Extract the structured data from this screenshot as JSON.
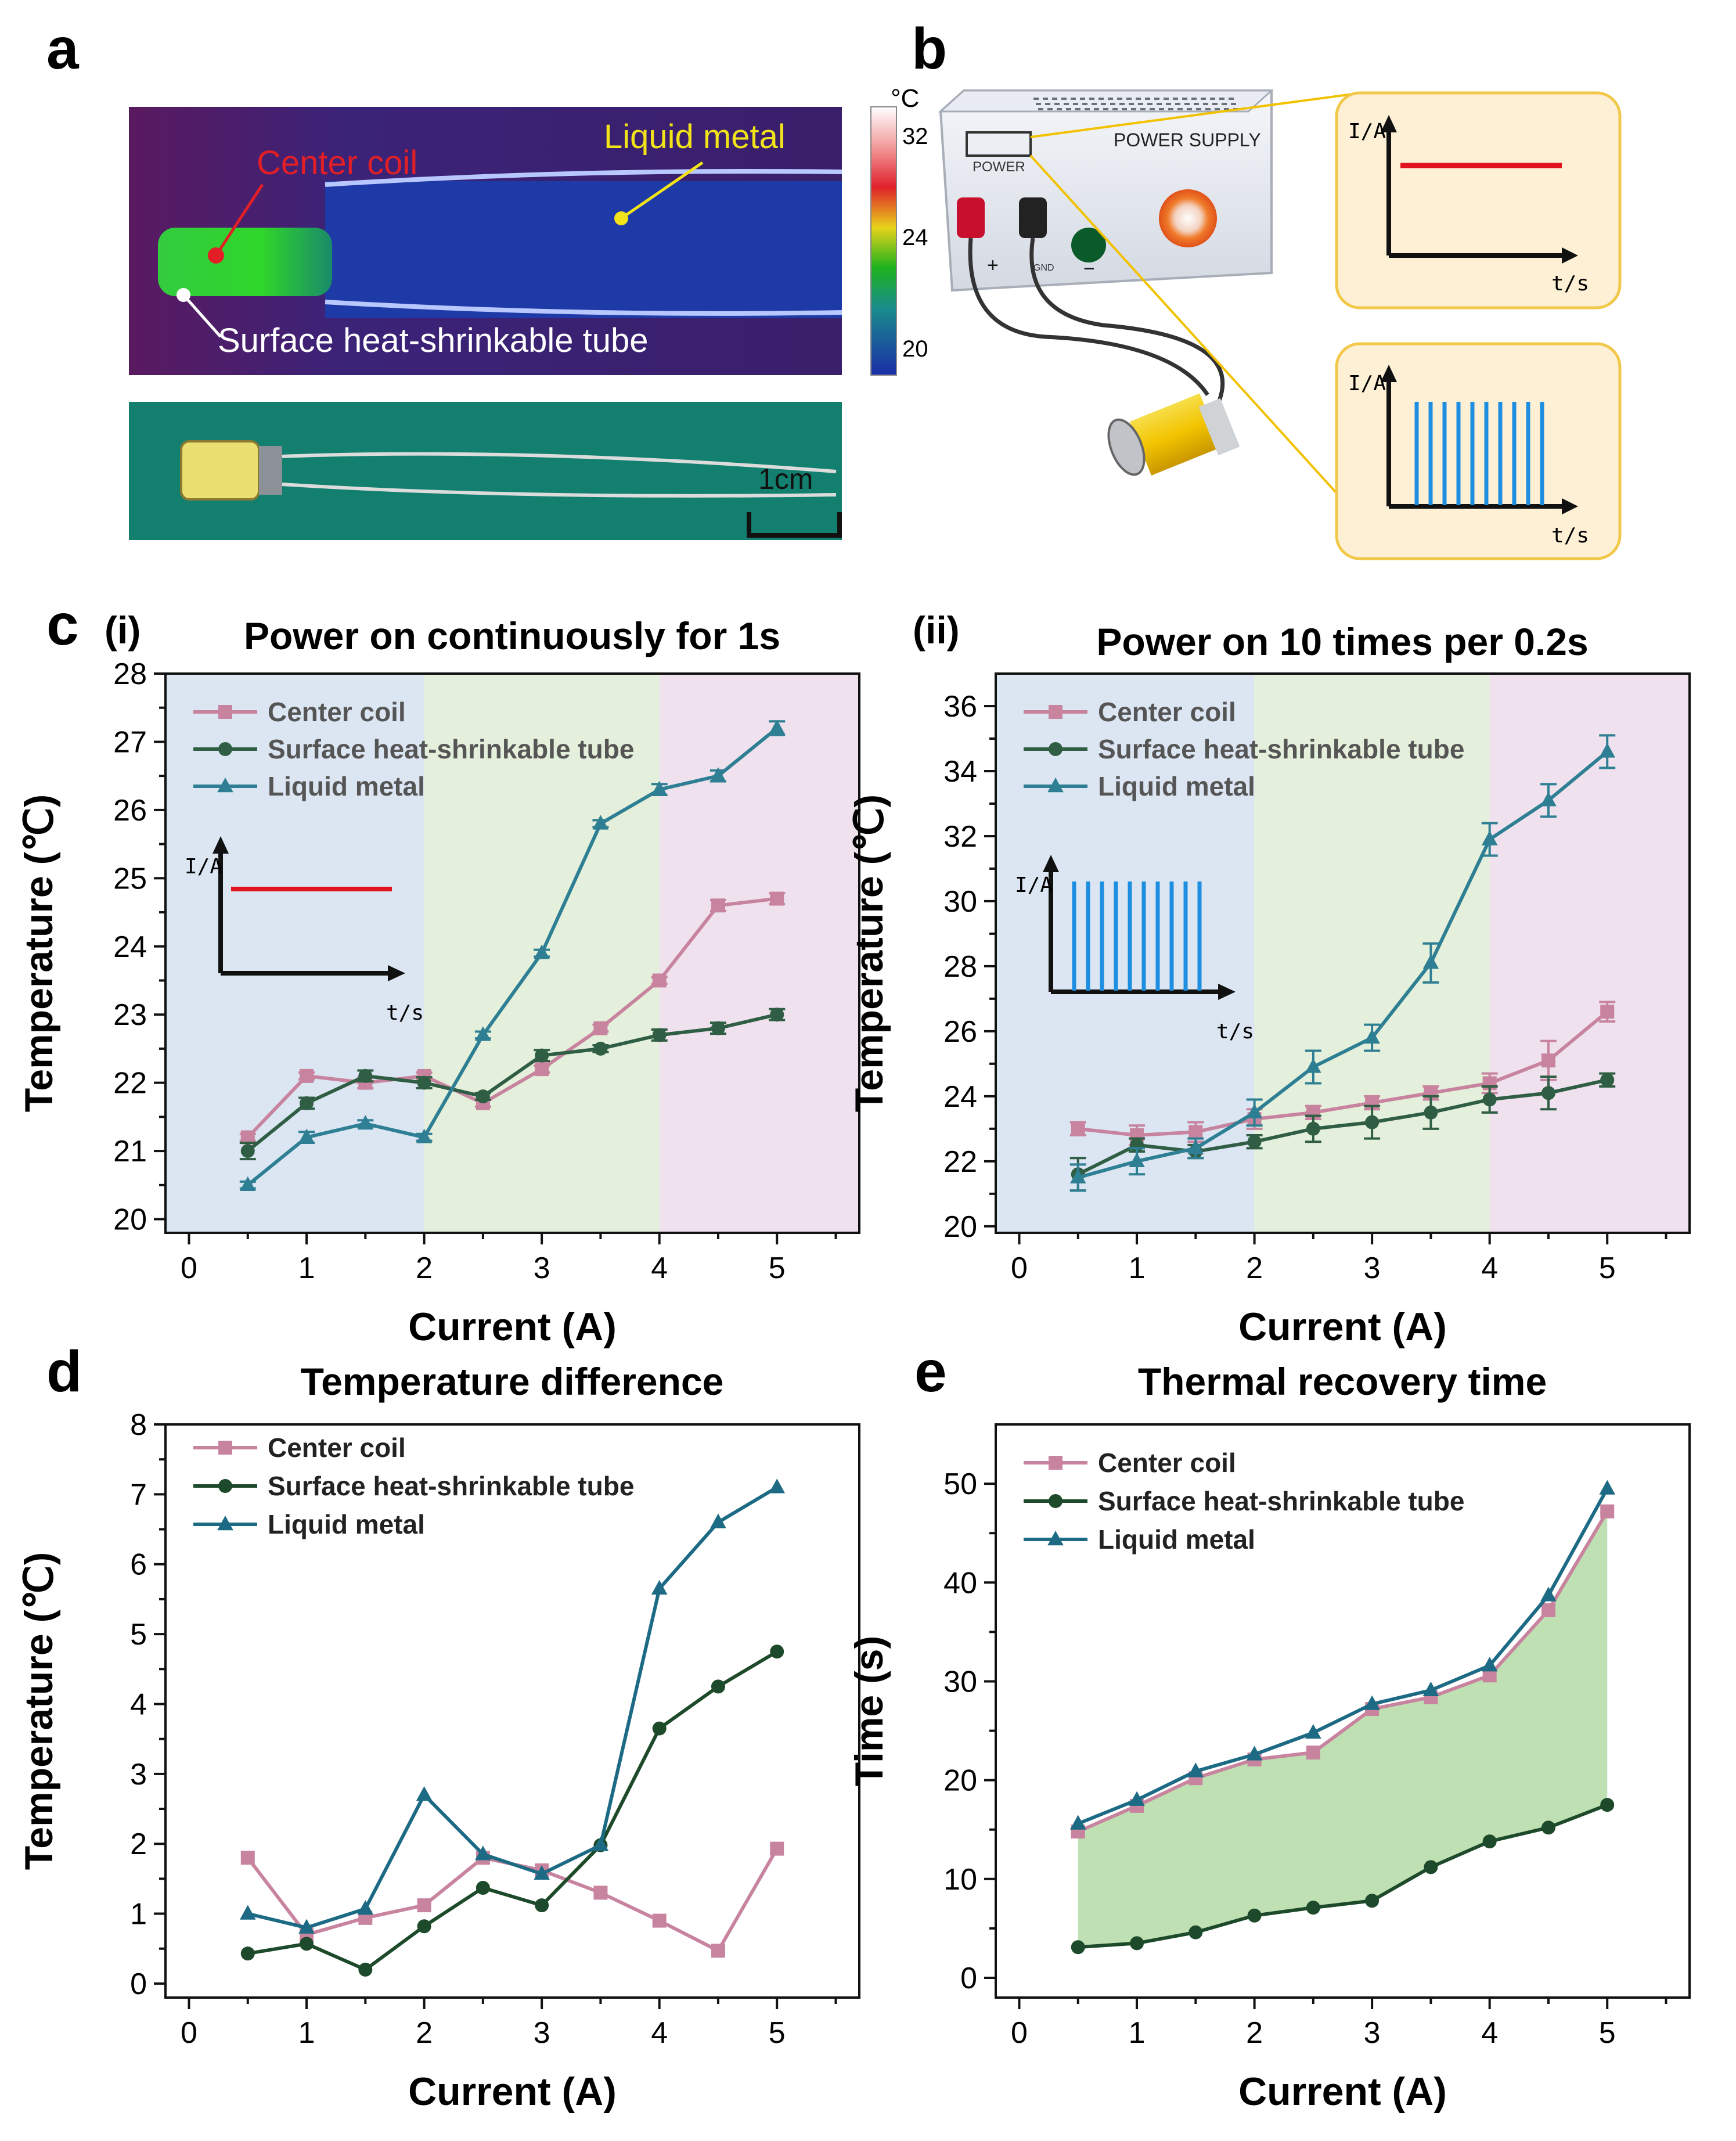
{
  "panels": {
    "a": {
      "label": "a",
      "thermal_labels": {
        "center_coil": "Center coil",
        "liquid_metal": "Liquid metal",
        "tube": "Surface heat-shrinkable tube"
      },
      "colorbar": {
        "unit": "°C",
        "ticks": [
          "32",
          "24",
          "20"
        ]
      },
      "scale_bar": "1cm"
    },
    "b": {
      "label": "b",
      "device_title": "POWER SUPPLY",
      "power_label": "POWER",
      "gnd_label": "GND",
      "plus": "+",
      "minus": "−",
      "inset1": {
        "ylabel": "I/A",
        "xlabel": "t/s"
      },
      "inset2": {
        "ylabel": "I/A",
        "xlabel": "t/s"
      }
    },
    "c": {
      "label": "c"
    }
  },
  "chart_data": [
    {
      "id": "c-i",
      "type": "line",
      "tag": "(i)",
      "title": "Power on continuously for 1s",
      "xlabel": "Current (A)",
      "ylabel": "Temperature (℃)",
      "xlim": [
        -0.2,
        5.7
      ],
      "ylim": [
        19.8,
        28.0
      ],
      "xticks": [
        "0",
        "1",
        "2",
        "3",
        "4",
        "5"
      ],
      "yticks": [
        "20",
        "21",
        "22",
        "23",
        "24",
        "25",
        "26",
        "27",
        "28"
      ],
      "bands": [
        "#dbe6f2",
        "#e5f0dc",
        "#efe2ee"
      ],
      "inset": {
        "ylabel": "I/A",
        "xlabel": "t/s"
      },
      "x": [
        0.5,
        1,
        1.5,
        2,
        2.5,
        3,
        3.5,
        4,
        4.5,
        5
      ],
      "series": [
        {
          "name": "Center coil",
          "color": "#c8849f",
          "marker": "square",
          "values": [
            21.2,
            22.1,
            22.0,
            22.1,
            21.7,
            22.2,
            22.8,
            23.5,
            24.6,
            24.7
          ],
          "err": [
            0.05,
            0.05,
            0.08,
            0.05,
            0.05,
            0.05,
            0.05,
            0.05,
            0.08,
            0.08
          ]
        },
        {
          "name": "Surface heat-shrinkable tube",
          "color": "#2f5e44",
          "marker": "circle",
          "values": [
            21.0,
            21.7,
            22.1,
            22.0,
            21.8,
            22.4,
            22.5,
            22.7,
            22.8,
            23.0
          ],
          "err": [
            0.12,
            0.08,
            0.08,
            0.08,
            0.05,
            0.08,
            0.05,
            0.08,
            0.08,
            0.08
          ]
        },
        {
          "name": "Liquid metal",
          "color": "#2e7f93",
          "marker": "triangle",
          "values": [
            20.5,
            21.2,
            21.4,
            21.2,
            22.7,
            23.9,
            25.8,
            26.3,
            26.5,
            27.2
          ],
          "err": [
            0.05,
            0.08,
            0.05,
            0.05,
            0.05,
            0.05,
            0.05,
            0.08,
            0.08,
            0.1
          ]
        }
      ]
    },
    {
      "id": "c-ii",
      "type": "line",
      "tag": "(ii)",
      "title": "Power on 10 times per 0.2s",
      "xlabel": "Current (A)",
      "ylabel": "Temperature (℃)",
      "xlim": [
        -0.2,
        5.7
      ],
      "ylim": [
        19.8,
        37.0
      ],
      "xticks": [
        "0",
        "1",
        "2",
        "3",
        "4",
        "5"
      ],
      "yticks": [
        "20",
        "22",
        "24",
        "26",
        "28",
        "30",
        "32",
        "34",
        "36"
      ],
      "bands": [
        "#dbe6f2",
        "#e5f0dc",
        "#efe2ee"
      ],
      "inset": {
        "ylabel": "I/A",
        "xlabel": "t/s"
      },
      "x": [
        0.5,
        1,
        1.5,
        2,
        2.5,
        3,
        3.5,
        4,
        4.5,
        5
      ],
      "series": [
        {
          "name": "Center coil",
          "color": "#c8849f",
          "marker": "square",
          "values": [
            23.0,
            22.8,
            22.9,
            23.3,
            23.5,
            23.8,
            24.1,
            24.4,
            25.1,
            26.6
          ],
          "err": [
            0.2,
            0.3,
            0.3,
            0.3,
            0.2,
            0.2,
            0.2,
            0.3,
            0.6,
            0.3
          ]
        },
        {
          "name": "Surface heat-shrinkable tube",
          "color": "#2f5e44",
          "marker": "circle",
          "values": [
            21.6,
            22.5,
            22.3,
            22.6,
            23.0,
            23.2,
            23.5,
            23.9,
            24.1,
            24.5
          ],
          "err": [
            0.5,
            0.2,
            0.2,
            0.2,
            0.4,
            0.5,
            0.5,
            0.4,
            0.5,
            0.2
          ]
        },
        {
          "name": "Liquid metal",
          "color": "#2e7f93",
          "marker": "triangle",
          "values": [
            21.5,
            22.0,
            22.4,
            23.5,
            24.9,
            25.8,
            28.1,
            31.9,
            33.1,
            34.6
          ],
          "err": [
            0.4,
            0.4,
            0.3,
            0.4,
            0.5,
            0.4,
            0.6,
            0.5,
            0.5,
            0.5
          ]
        }
      ]
    },
    {
      "id": "d",
      "type": "line",
      "tag": "d",
      "title": "Temperature difference",
      "xlabel": "Current (A)",
      "ylabel": "Temperature (℃)",
      "xlim": [
        -0.2,
        5.7
      ],
      "ylim": [
        -0.2,
        8.0
      ],
      "xticks": [
        "0",
        "1",
        "2",
        "3",
        "4",
        "5"
      ],
      "yticks": [
        "0",
        "1",
        "2",
        "3",
        "4",
        "5",
        "6",
        "7",
        "8"
      ],
      "x": [
        0.5,
        1,
        1.5,
        2,
        2.5,
        3,
        3.5,
        4,
        4.5,
        5
      ],
      "series": [
        {
          "name": "Center coil",
          "color": "#c8849f",
          "marker": "square",
          "values": [
            1.8,
            0.7,
            0.94,
            1.12,
            1.8,
            1.62,
            1.3,
            0.9,
            0.47,
            1.93
          ]
        },
        {
          "name": "Surface heat-shrinkable tube",
          "color": "#1d4a2a",
          "marker": "circle",
          "values": [
            0.43,
            0.57,
            0.2,
            0.82,
            1.37,
            1.12,
            1.98,
            3.65,
            4.25,
            4.75
          ]
        },
        {
          "name": "Liquid metal",
          "color": "#1d6a85",
          "marker": "triangle",
          "values": [
            1.0,
            0.8,
            1.07,
            2.7,
            1.85,
            1.57,
            1.98,
            5.65,
            6.6,
            7.1
          ]
        }
      ]
    },
    {
      "id": "e",
      "type": "area",
      "tag": "e",
      "title": "Thermal recovery time",
      "xlabel": "Current (A)",
      "ylabel": "Time (s)",
      "xlim": [
        -0.2,
        5.7
      ],
      "ylim": [
        -2,
        56
      ],
      "xticks": [
        "0",
        "1",
        "2",
        "3",
        "4",
        "5"
      ],
      "yticks": [
        "0",
        "10",
        "20",
        "30",
        "40",
        "50"
      ],
      "fill": "#bfe0b3",
      "x": [
        0.5,
        1,
        1.5,
        2,
        2.5,
        3,
        3.5,
        4,
        4.5,
        5
      ],
      "series": [
        {
          "name": "Center coil",
          "color": "#c8849f",
          "marker": "square",
          "values": [
            14.8,
            17.4,
            20.2,
            22.1,
            22.8,
            27.2,
            28.4,
            30.6,
            37.2,
            47.2
          ]
        },
        {
          "name": "Surface heat-shrinkable tube",
          "color": "#1d4a2a",
          "marker": "circle",
          "values": [
            3.1,
            3.5,
            4.6,
            6.3,
            7.1,
            7.8,
            11.2,
            13.8,
            15.2,
            17.5
          ]
        },
        {
          "name": "Liquid metal",
          "color": "#1d6a85",
          "marker": "triangle",
          "values": [
            15.6,
            18.0,
            20.9,
            22.6,
            24.8,
            27.7,
            29.1,
            31.6,
            38.7,
            49.5
          ]
        }
      ]
    }
  ]
}
